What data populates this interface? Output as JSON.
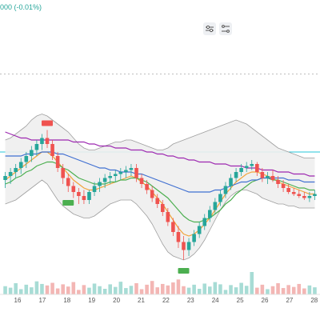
{
  "header": {
    "change_readout": "000 (-0.01%)"
  },
  "toolbar": {
    "buttons": [
      {
        "icon": "settings-sliders-icon"
      },
      {
        "icon": "indicator-settings-icon"
      }
    ]
  },
  "colors": {
    "up": "#26a69a",
    "down": "#ef5350",
    "vol_up": "#a7dcd5",
    "vol_down": "#f3b6b4",
    "ma_fast": "#f2a33a",
    "ma_mid": "#4caf50",
    "ma_slow": "#3f6fd1",
    "ma_long": "#9c27b0",
    "band_fill": "#eeeeee",
    "band_line": "#9e9e9e",
    "hline": "#26c6da",
    "dotted": "#bdbdbd"
  },
  "chart_data": {
    "type": "candlestick",
    "x_axis": {
      "tick_labels": [
        "16",
        "17",
        "18",
        "19",
        "20",
        "21",
        "22",
        "23",
        "24",
        "25",
        "26",
        "27",
        "28"
      ]
    },
    "price": {
      "ylim": [
        0,
        100
      ],
      "candles": [
        {
          "o": 42,
          "h": 46,
          "l": 38,
          "c": 44
        },
        {
          "o": 44,
          "h": 48,
          "l": 40,
          "c": 46
        },
        {
          "o": 46,
          "h": 50,
          "l": 43,
          "c": 48
        },
        {
          "o": 48,
          "h": 53,
          "l": 45,
          "c": 51
        },
        {
          "o": 51,
          "h": 56,
          "l": 48,
          "c": 54
        },
        {
          "o": 54,
          "h": 59,
          "l": 51,
          "c": 57
        },
        {
          "o": 57,
          "h": 62,
          "l": 54,
          "c": 60
        },
        {
          "o": 60,
          "h": 65,
          "l": 57,
          "c": 63
        },
        {
          "o": 63,
          "h": 67,
          "l": 58,
          "c": 60
        },
        {
          "o": 60,
          "h": 62,
          "l": 52,
          "c": 54
        },
        {
          "o": 54,
          "h": 56,
          "l": 46,
          "c": 48
        },
        {
          "o": 48,
          "h": 50,
          "l": 40,
          "c": 43
        },
        {
          "o": 43,
          "h": 45,
          "l": 36,
          "c": 39
        },
        {
          "o": 39,
          "h": 41,
          "l": 33,
          "c": 36
        },
        {
          "o": 36,
          "h": 38,
          "l": 30,
          "c": 34
        },
        {
          "o": 34,
          "h": 37,
          "l": 30,
          "c": 32
        },
        {
          "o": 32,
          "h": 37,
          "l": 30,
          "c": 36
        },
        {
          "o": 36,
          "h": 41,
          "l": 34,
          "c": 39
        },
        {
          "o": 39,
          "h": 43,
          "l": 36,
          "c": 41
        },
        {
          "o": 41,
          "h": 45,
          "l": 38,
          "c": 43
        },
        {
          "o": 43,
          "h": 46,
          "l": 40,
          "c": 44
        },
        {
          "o": 44,
          "h": 47,
          "l": 41,
          "c": 45
        },
        {
          "o": 45,
          "h": 48,
          "l": 42,
          "c": 46
        },
        {
          "o": 46,
          "h": 49,
          "l": 43,
          "c": 47
        },
        {
          "o": 47,
          "h": 50,
          "l": 44,
          "c": 48
        },
        {
          "o": 48,
          "h": 50,
          "l": 41,
          "c": 43
        },
        {
          "o": 43,
          "h": 45,
          "l": 38,
          "c": 40
        },
        {
          "o": 40,
          "h": 42,
          "l": 35,
          "c": 37
        },
        {
          "o": 37,
          "h": 39,
          "l": 31,
          "c": 33
        },
        {
          "o": 33,
          "h": 35,
          "l": 28,
          "c": 30
        },
        {
          "o": 30,
          "h": 32,
          "l": 24,
          "c": 26
        },
        {
          "o": 26,
          "h": 28,
          "l": 19,
          "c": 21
        },
        {
          "o": 21,
          "h": 23,
          "l": 14,
          "c": 16
        },
        {
          "o": 16,
          "h": 19,
          "l": 8,
          "c": 11
        },
        {
          "o": 11,
          "h": 14,
          "l": 2,
          "c": 7
        },
        {
          "o": 7,
          "h": 13,
          "l": 4,
          "c": 11
        },
        {
          "o": 11,
          "h": 17,
          "l": 9,
          "c": 15
        },
        {
          "o": 15,
          "h": 21,
          "l": 13,
          "c": 19
        },
        {
          "o": 19,
          "h": 25,
          "l": 17,
          "c": 23
        },
        {
          "o": 23,
          "h": 29,
          "l": 21,
          "c": 27
        },
        {
          "o": 27,
          "h": 33,
          "l": 25,
          "c": 31
        },
        {
          "o": 31,
          "h": 37,
          "l": 29,
          "c": 35
        },
        {
          "o": 35,
          "h": 41,
          "l": 33,
          "c": 39
        },
        {
          "o": 39,
          "h": 45,
          "l": 37,
          "c": 43
        },
        {
          "o": 43,
          "h": 48,
          "l": 41,
          "c": 46
        },
        {
          "o": 46,
          "h": 50,
          "l": 44,
          "c": 48
        },
        {
          "o": 48,
          "h": 51,
          "l": 46,
          "c": 49
        },
        {
          "o": 49,
          "h": 52,
          "l": 47,
          "c": 50
        },
        {
          "o": 50,
          "h": 51,
          "l": 44,
          "c": 46
        },
        {
          "o": 46,
          "h": 48,
          "l": 41,
          "c": 43
        },
        {
          "o": 43,
          "h": 46,
          "l": 40,
          "c": 44
        },
        {
          "o": 44,
          "h": 47,
          "l": 41,
          "c": 42
        },
        {
          "o": 42,
          "h": 44,
          "l": 38,
          "c": 40
        },
        {
          "o": 40,
          "h": 42,
          "l": 36,
          "c": 38
        },
        {
          "o": 38,
          "h": 40,
          "l": 35,
          "c": 36
        },
        {
          "o": 36,
          "h": 38,
          "l": 34,
          "c": 35
        },
        {
          "o": 35,
          "h": 37,
          "l": 33,
          "c": 34
        },
        {
          "o": 34,
          "h": 36,
          "l": 32,
          "c": 33
        },
        {
          "o": 33,
          "h": 36,
          "l": 31,
          "c": 34
        },
        {
          "o": 34,
          "h": 37,
          "l": 32,
          "c": 35
        }
      ],
      "upper_band": [
        62,
        63,
        65,
        67,
        69,
        72,
        74,
        75,
        74,
        72,
        70,
        68,
        66,
        63,
        60,
        58,
        57,
        57,
        58,
        59,
        60,
        61,
        61,
        62,
        62,
        61,
        60,
        59,
        58,
        57,
        57,
        58,
        60,
        61,
        62,
        63,
        64,
        65,
        66,
        67,
        68,
        69,
        70,
        71,
        72,
        71,
        70,
        68,
        66,
        64,
        62,
        60,
        58,
        57,
        56,
        55,
        54,
        53,
        53,
        53
      ],
      "lower_band": [
        30,
        31,
        32,
        34,
        36,
        38,
        40,
        42,
        40,
        36,
        32,
        29,
        27,
        25,
        24,
        23,
        23,
        24,
        26,
        28,
        30,
        31,
        32,
        32,
        32,
        30,
        27,
        24,
        20,
        15,
        10,
        6,
        4,
        3,
        2,
        3,
        5,
        8,
        12,
        17,
        22,
        27,
        31,
        34,
        36,
        37,
        37,
        36,
        35,
        33,
        32,
        31,
        30,
        30,
        29,
        29,
        28,
        28,
        28,
        28
      ],
      "moving_averages": [
        {
          "values": [
            42,
            44,
            46,
            48,
            50,
            52,
            54,
            56,
            56,
            54,
            51,
            48,
            45,
            42,
            40,
            38,
            37,
            37,
            38,
            39,
            40,
            41,
            42,
            43,
            44,
            43,
            41,
            39,
            36,
            33,
            30,
            26,
            22,
            18,
            15,
            14,
            15,
            17,
            20,
            23,
            27,
            31,
            35,
            38,
            41,
            43,
            45,
            46,
            46,
            45,
            44,
            43,
            41,
            40,
            39,
            38,
            37,
            36,
            35,
            35
          ]
        },
        {
          "values": [
            40,
            41,
            43,
            44,
            46,
            47,
            49,
            50,
            51,
            51,
            50,
            48,
            47,
            45,
            43,
            42,
            41,
            40,
            40,
            40,
            41,
            41,
            42,
            42,
            43,
            43,
            42,
            41,
            39,
            37,
            35,
            33,
            30,
            27,
            24,
            22,
            21,
            21,
            22,
            23,
            25,
            27,
            30,
            32,
            35,
            37,
            39,
            41,
            42,
            43,
            43,
            42,
            42,
            41,
            40,
            39,
            38,
            38,
            37,
            37
          ]
        },
        {
          "values": [
            54,
            54,
            54,
            54,
            55,
            55,
            55,
            56,
            56,
            56,
            55,
            55,
            54,
            53,
            52,
            51,
            50,
            49,
            48,
            48,
            47,
            47,
            46,
            46,
            46,
            45,
            45,
            44,
            43,
            42,
            41,
            40,
            39,
            38,
            37,
            36,
            36,
            36,
            36,
            36,
            37,
            37,
            38,
            39,
            40,
            41,
            41,
            42,
            42,
            43,
            43,
            43,
            43,
            43,
            42,
            42,
            42,
            41,
            41,
            41
          ]
        },
        {
          "values": [
            66,
            65,
            64,
            63,
            63,
            62,
            62,
            62,
            62,
            62,
            62,
            62,
            62,
            61,
            61,
            61,
            60,
            60,
            59,
            59,
            59,
            58,
            58,
            58,
            57,
            57,
            57,
            56,
            56,
            55,
            55,
            54,
            54,
            53,
            53,
            52,
            52,
            51,
            51,
            51,
            50,
            50,
            50,
            49,
            49,
            49,
            48,
            48,
            48,
            47,
            47,
            47,
            46,
            46,
            46,
            45,
            45,
            45,
            44,
            44
          ]
        }
      ],
      "horizontal_line": 56,
      "dotted_level": 95
    },
    "volume": {
      "values": [
        22,
        18,
        30,
        14,
        26,
        19,
        35,
        28,
        24,
        31,
        16,
        27,
        21,
        33,
        12,
        25,
        18,
        29,
        22,
        15,
        27,
        20,
        34,
        17,
        23,
        30,
        14,
        26,
        36,
        19,
        28,
        24,
        32,
        40,
        22,
        18,
        26,
        15,
        29,
        21,
        33,
        27,
        12,
        25,
        19,
        31,
        23,
        60,
        18,
        26,
        14,
        22,
        30,
        17,
        25,
        20,
        28,
        16,
        24,
        19
      ]
    },
    "signals": [
      {
        "index": 12,
        "direction": "buy"
      },
      {
        "index": 34,
        "direction": "buy"
      },
      {
        "index": 8,
        "direction": "sell"
      }
    ]
  }
}
